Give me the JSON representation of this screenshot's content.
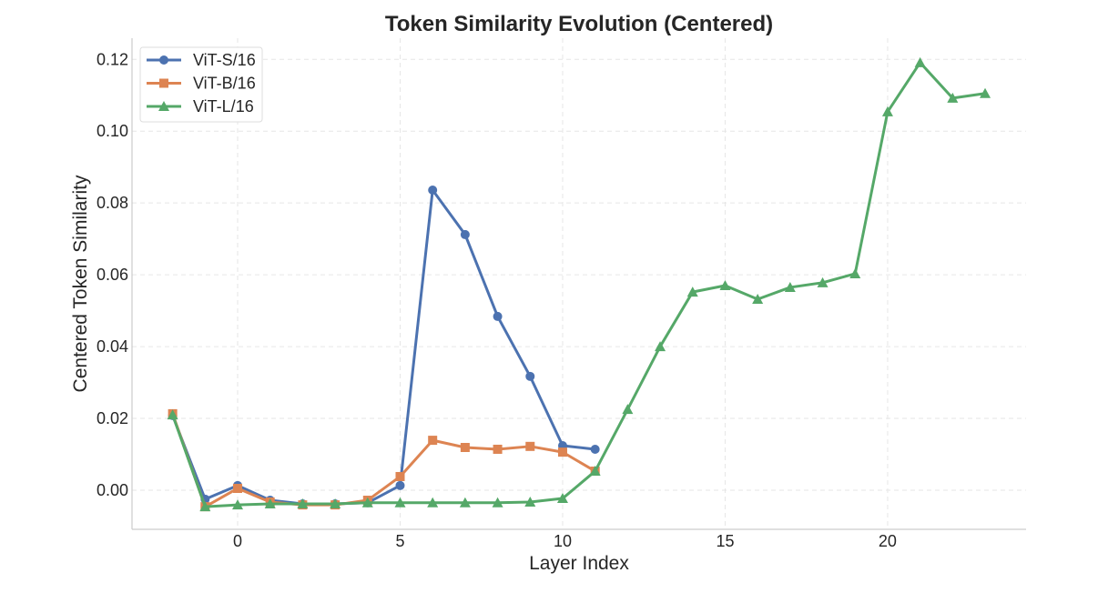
{
  "chart_data": {
    "type": "line",
    "title": "Token Similarity Evolution (Centered)",
    "xlabel": "Layer Index",
    "ylabel": "Centered Token Similarity",
    "xlim": [
      -3.25,
      24.26
    ],
    "ylim": [
      -0.0109,
      0.1259
    ],
    "xticks": [
      0,
      5,
      10,
      15,
      20
    ],
    "yticks": [
      0.0,
      0.02,
      0.04,
      0.06,
      0.08,
      0.1,
      0.12
    ],
    "ytick_labels": [
      "0.00",
      "0.02",
      "0.04",
      "0.06",
      "0.08",
      "0.10",
      "0.12"
    ],
    "grid": true,
    "legend_position": "top-left",
    "series": [
      {
        "name": "ViT-S/16",
        "color": "#4c72b0",
        "marker": "circle",
        "x": [
          -2,
          -1,
          0,
          1,
          2,
          3,
          4,
          5,
          6,
          7,
          8,
          9,
          10,
          11
        ],
        "values": [
          0.0208,
          -0.0025,
          0.0013,
          -0.0028,
          -0.0038,
          -0.0038,
          -0.0035,
          0.0013,
          0.0836,
          0.0712,
          0.0484,
          0.0317,
          0.0124,
          0.0114
        ]
      },
      {
        "name": "ViT-B/16",
        "color": "#dd8452",
        "marker": "square",
        "x": [
          -2,
          -1,
          0,
          1,
          2,
          3,
          4,
          5,
          6,
          7,
          8,
          9,
          10,
          11
        ],
        "values": [
          0.0213,
          -0.0046,
          0.0005,
          -0.0033,
          -0.0041,
          -0.0041,
          -0.0028,
          0.0038,
          0.0139,
          0.0119,
          0.0114,
          0.0122,
          0.0106,
          0.0053
        ]
      },
      {
        "name": "ViT-L/16",
        "color": "#55a868",
        "marker": "triangle",
        "x": [
          -2,
          -1,
          0,
          1,
          2,
          3,
          4,
          5,
          6,
          7,
          8,
          9,
          10,
          11,
          12,
          13,
          14,
          15,
          16,
          17,
          18,
          19,
          20,
          21,
          22,
          23
        ],
        "values": [
          0.021,
          -0.0046,
          -0.0041,
          -0.0038,
          -0.0038,
          -0.0038,
          -0.0035,
          -0.0035,
          -0.0035,
          -0.0035,
          -0.0035,
          -0.0033,
          -0.0023,
          0.0053,
          0.0225,
          0.04,
          0.0552,
          0.057,
          0.0532,
          0.0565,
          0.0578,
          0.0603,
          0.1054,
          0.1191,
          0.1092,
          0.1105
        ]
      }
    ]
  }
}
